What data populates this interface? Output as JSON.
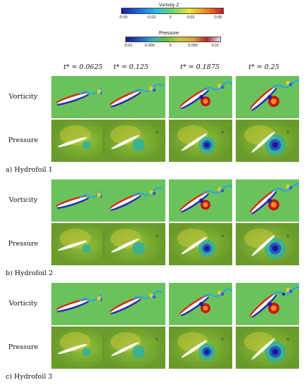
{
  "colorbars": [
    {
      "title": "Vorticity Z",
      "ticks": [
        "-0.05",
        "-0.02",
        "0",
        "0.02",
        "0.05"
      ],
      "tick_values": [
        -0.05,
        -0.02,
        0,
        0.02,
        0.05
      ],
      "range": [
        -0.05,
        0.05
      ],
      "colors": [
        "#1a1aa8",
        "#1f66e0",
        "#27b8e8",
        "#6fd46a",
        "#e8e83a",
        "#f08a1e",
        "#c41818"
      ]
    },
    {
      "title": "Pressure",
      "ticks": [
        "-0.01",
        "-0.005",
        "0",
        "0.005",
        "0.01"
      ],
      "tick_values": [
        -0.01,
        -0.005,
        0,
        0.005,
        0.01
      ],
      "range": [
        -0.01,
        0.01
      ],
      "colors": [
        "#1a1a8c",
        "#2457c8",
        "#2fb0b8",
        "#6bbf3a",
        "#c9c83a",
        "#d8a23a",
        "#b02828",
        "#e8e0ff"
      ]
    }
  ],
  "time_headers": [
    "t* = 0.0625",
    "t* = 0.125",
    "t* = 0.1875",
    "t* = 0.25"
  ],
  "row_labels": {
    "vorticity": "Vorticity",
    "pressure": "Pressure"
  },
  "groups": [
    {
      "caption": "a) Hydrofoil 1"
    },
    {
      "caption": "b) Hydrofoil 2"
    },
    {
      "caption": "c) Hydrofoil 3"
    }
  ]
}
